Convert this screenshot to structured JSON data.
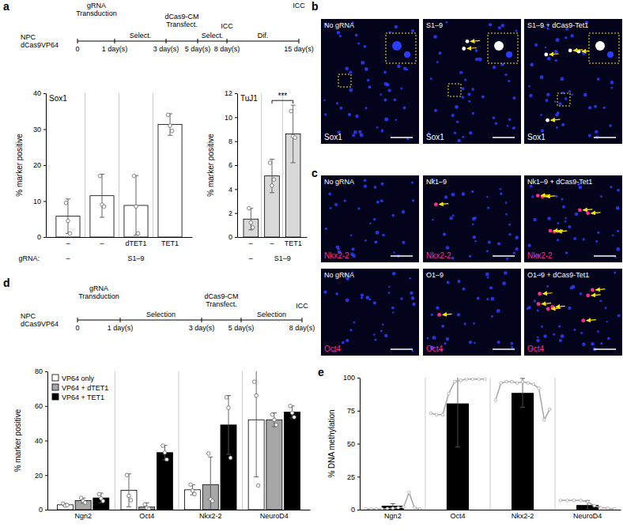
{
  "panel_labels": [
    "a",
    "b",
    "c",
    "d",
    "e"
  ],
  "timelines": [
    {
      "start_label": [
        "NPC",
        "dCas9VP64"
      ],
      "ticks": [
        "0",
        "1 day(s)",
        "3 day(s)",
        "5 day(s)",
        "8 day(s)",
        "15 day(s)"
      ],
      "events": [
        [
          "gRNA",
          "Transduction"
        ],
        [
          "dCas9-CM",
          "Transfect."
        ],
        [
          "ICC"
        ],
        [
          "ICC"
        ]
      ],
      "phases": [
        "Select.",
        "Select.",
        "Dif."
      ]
    },
    {
      "start_label": [
        "NPC",
        "dCas9VP64"
      ],
      "ticks": [
        "0",
        "1 day(s)",
        "3 day(s)",
        "5 day(s)",
        "8 day(s)"
      ],
      "events": [
        [
          "gRNA",
          "Transduction"
        ],
        [
          "dCas9-CM",
          "Transfect."
        ],
        [
          "ICC"
        ]
      ],
      "phases": [
        "Selection",
        "Selection"
      ]
    }
  ],
  "images": [
    {
      "label": "No gRNA",
      "stain": "Sox1",
      "stain_color": "#ffffff"
    },
    {
      "label": "S1–9",
      "stain": "Sox1",
      "stain_color": "#ffffff"
    },
    {
      "label": "S1–9 + dCas9-Tet1",
      "stain": "Sox1",
      "stain_color": "#ffffff"
    },
    {
      "label": "No gRNA",
      "stain": "Nkx2-2",
      "stain_color": "#ff2a8c"
    },
    {
      "label": "Nk1–9",
      "stain": "Nkx2-2",
      "stain_color": "#ff2a8c"
    },
    {
      "label": "Nk1–9 + dCas9-Tet1",
      "stain": "Nkx2-2",
      "stain_color": "#ff2a8c"
    },
    {
      "label": "No gRNA",
      "stain": "Oct4",
      "stain_color": "#ff2a8c"
    },
    {
      "label": "O1–9",
      "stain": "Oct4",
      "stain_color": "#ff2a8c"
    },
    {
      "label": "O1–9 + dCas9-Tet1",
      "stain": "Oct4",
      "stain_color": "#ff2a8c"
    }
  ],
  "chart_data": [
    {
      "type": "bar",
      "title": "Sox1",
      "ylabel": "% marker positive",
      "categories": [
        "–",
        "–",
        "dTET1",
        "TET1"
      ],
      "categories2": [
        "–",
        "S1–9",
        "S1–9",
        "S1–9"
      ],
      "categories2_title": "gRNA:",
      "values": [
        5.8,
        11.5,
        8.8,
        31.3
      ],
      "errors": [
        4.8,
        6,
        8.3,
        3
      ],
      "points": [
        [
          9.5,
          4.5,
          1
        ],
        [
          17,
          9,
          8.5
        ],
        [
          17,
          8.5,
          1
        ],
        [
          34,
          31,
          29.5
        ]
      ],
      "color": "#ffffff",
      "ylim": [
        0,
        40
      ],
      "yticks": [
        0,
        10,
        20,
        30,
        40
      ]
    },
    {
      "type": "bar",
      "title": "TuJ1",
      "ylabel": "% marker positive",
      "categories": [
        "–",
        "–",
        "TET1"
      ],
      "categories2": [
        "–",
        "S1–9",
        "S1–9"
      ],
      "values": [
        1.5,
        5.1,
        8.6
      ],
      "errors": [
        0.9,
        1.4,
        2.4
      ],
      "points": [
        [
          2.4,
          1.2,
          0.8
        ],
        [
          6.2,
          4.3,
          4.8
        ],
        [
          10.5,
          8.4,
          8.3
        ]
      ],
      "color": "#d9d9d9",
      "ylim": [
        0,
        12
      ],
      "yticks": [
        0,
        2,
        4,
        6,
        8,
        10,
        12
      ],
      "significance": [
        {
          "label": "***",
          "categories": [
            1,
            2
          ]
        }
      ]
    },
    {
      "type": "bar",
      "ylabel": "% marker positive",
      "categories": [
        "Ngn2",
        "Oct4",
        "Nkx2-2",
        "NeuroD4"
      ],
      "series": [
        {
          "name": "VP64 only",
          "color": "#ffffff",
          "values": [
            2.8,
            11.2,
            11.5,
            52
          ],
          "errors": [
            0.8,
            9.5,
            2.9,
            33
          ],
          "points": [
            [
              3.5,
              2.3,
              2.6
            ],
            [
              20,
              8,
              5.5
            ],
            [
              14.5,
              11,
              9
            ],
            [
              74,
              66,
              14
            ]
          ]
        },
        {
          "name": "VP64 + dTET1",
          "color": "#a6a6a6",
          "values": [
            5.3,
            1.5,
            14.5,
            52
          ],
          "errors": [
            1.5,
            2.5,
            16,
            4
          ],
          "points": [
            [
              6.8,
              5,
              4.1
            ],
            [
              3,
              1,
              0.5
            ],
            [
              32.5,
              6,
              5
            ],
            [
              55,
              52,
              49
            ]
          ]
        },
        {
          "name": "VP64 + TET1",
          "color": "#000000",
          "values": [
            6.8,
            33,
            49,
            56.5
          ],
          "errors": [
            2.8,
            4.2,
            17,
            3.5
          ],
          "points": [
            [
              9,
              6.5,
              5
            ],
            [
              37,
              33,
              29
            ],
            [
              65,
              59,
              30
            ],
            [
              60,
              56,
              53.5
            ]
          ]
        }
      ],
      "ylim": [
        0,
        80
      ],
      "yticks": [
        0,
        20,
        40,
        60,
        80
      ],
      "legend": "top-left"
    },
    {
      "type": "bar",
      "ylabel": "% DNA methylation",
      "categories": [
        "Ngn2",
        "Oct4",
        "Nkx2-2",
        "NeuroD4"
      ],
      "values": [
        3,
        80.5,
        88.5,
        3.5
      ],
      "errors": [
        1.5,
        33,
        11,
        3.5
      ],
      "color": "#000000",
      "ylim": [
        0,
        100
      ],
      "yticks": [
        0,
        25,
        50,
        75,
        100
      ],
      "sites": {
        "type": "line",
        "color": "#a6a6a6",
        "marker": "circle",
        "values": [
          [
            0.5,
            0.5,
            0.5,
            0.5,
            0.8,
            1,
            1.5,
            2,
            13,
            1.5,
            0.5
          ],
          [
            73,
            72,
            72,
            88,
            97,
            98,
            99,
            99,
            99,
            99
          ],
          [
            83,
            96,
            97,
            97,
            96,
            97,
            96,
            95,
            92,
            68,
            76
          ],
          [
            7,
            7,
            7,
            7,
            6,
            3,
            1.5,
            1,
            0.5
          ]
        ]
      }
    }
  ]
}
